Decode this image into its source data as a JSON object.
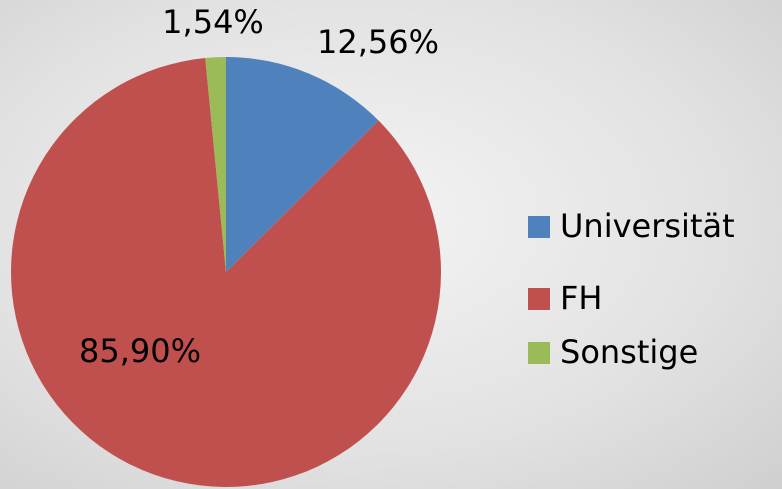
{
  "chart_data": {
    "type": "pie",
    "categories": [
      "Universität",
      "FH",
      "Sonstige"
    ],
    "values": [
      12.56,
      85.9,
      1.54
    ],
    "value_labels": [
      "12,56%",
      "85,90%",
      "1,54%"
    ],
    "colors": [
      "#4f81bd",
      "#c0504d",
      "#9bbb59"
    ],
    "legend": "right"
  }
}
